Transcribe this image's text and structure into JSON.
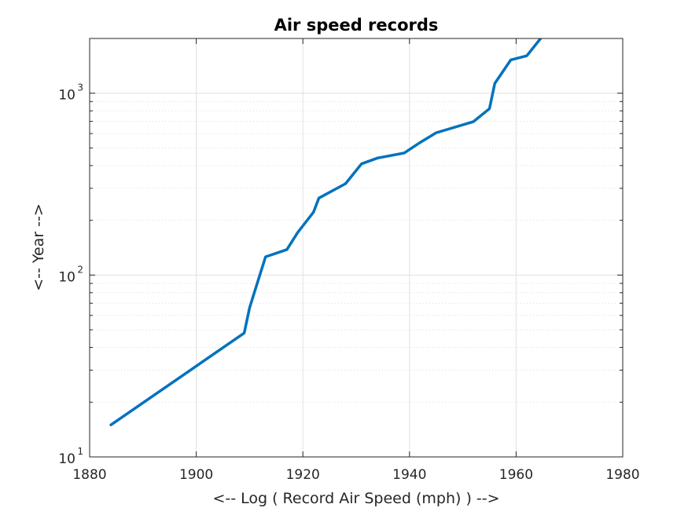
{
  "chart_data": {
    "type": "line",
    "title": "Air speed records",
    "xlabel": "<-- Log ( Record Air Speed (mph) ) -->",
    "ylabel": "<-- Year -->",
    "xlim": [
      1880,
      1980
    ],
    "ylim": [
      10,
      2000
    ],
    "yscale": "log",
    "grid": true,
    "minor_grid": true,
    "xticks": [
      "1880",
      "1900",
      "1920",
      "1940",
      "1960",
      "1980"
    ],
    "yticks": [
      {
        "value": 10,
        "base": "10",
        "exp": "1"
      },
      {
        "value": 100,
        "base": "10",
        "exp": "2"
      },
      {
        "value": 1000,
        "base": "10",
        "exp": "3"
      }
    ],
    "series": [
      {
        "color": "#0072bd",
        "x": [
          1884,
          1909,
          1910,
          1911,
          1913,
          1917,
          1919,
          1922,
          1923,
          1928,
          1931,
          1934,
          1939,
          1942,
          1945,
          1952,
          1955,
          1956,
          1959,
          1962,
          1965
        ],
        "y": [
          15,
          48,
          66,
          82,
          126,
          138,
          171,
          222,
          265,
          318,
          409,
          440,
          469,
          536,
          606,
          698,
          822,
          1132,
          1525,
          1606,
          2070
        ]
      }
    ]
  }
}
